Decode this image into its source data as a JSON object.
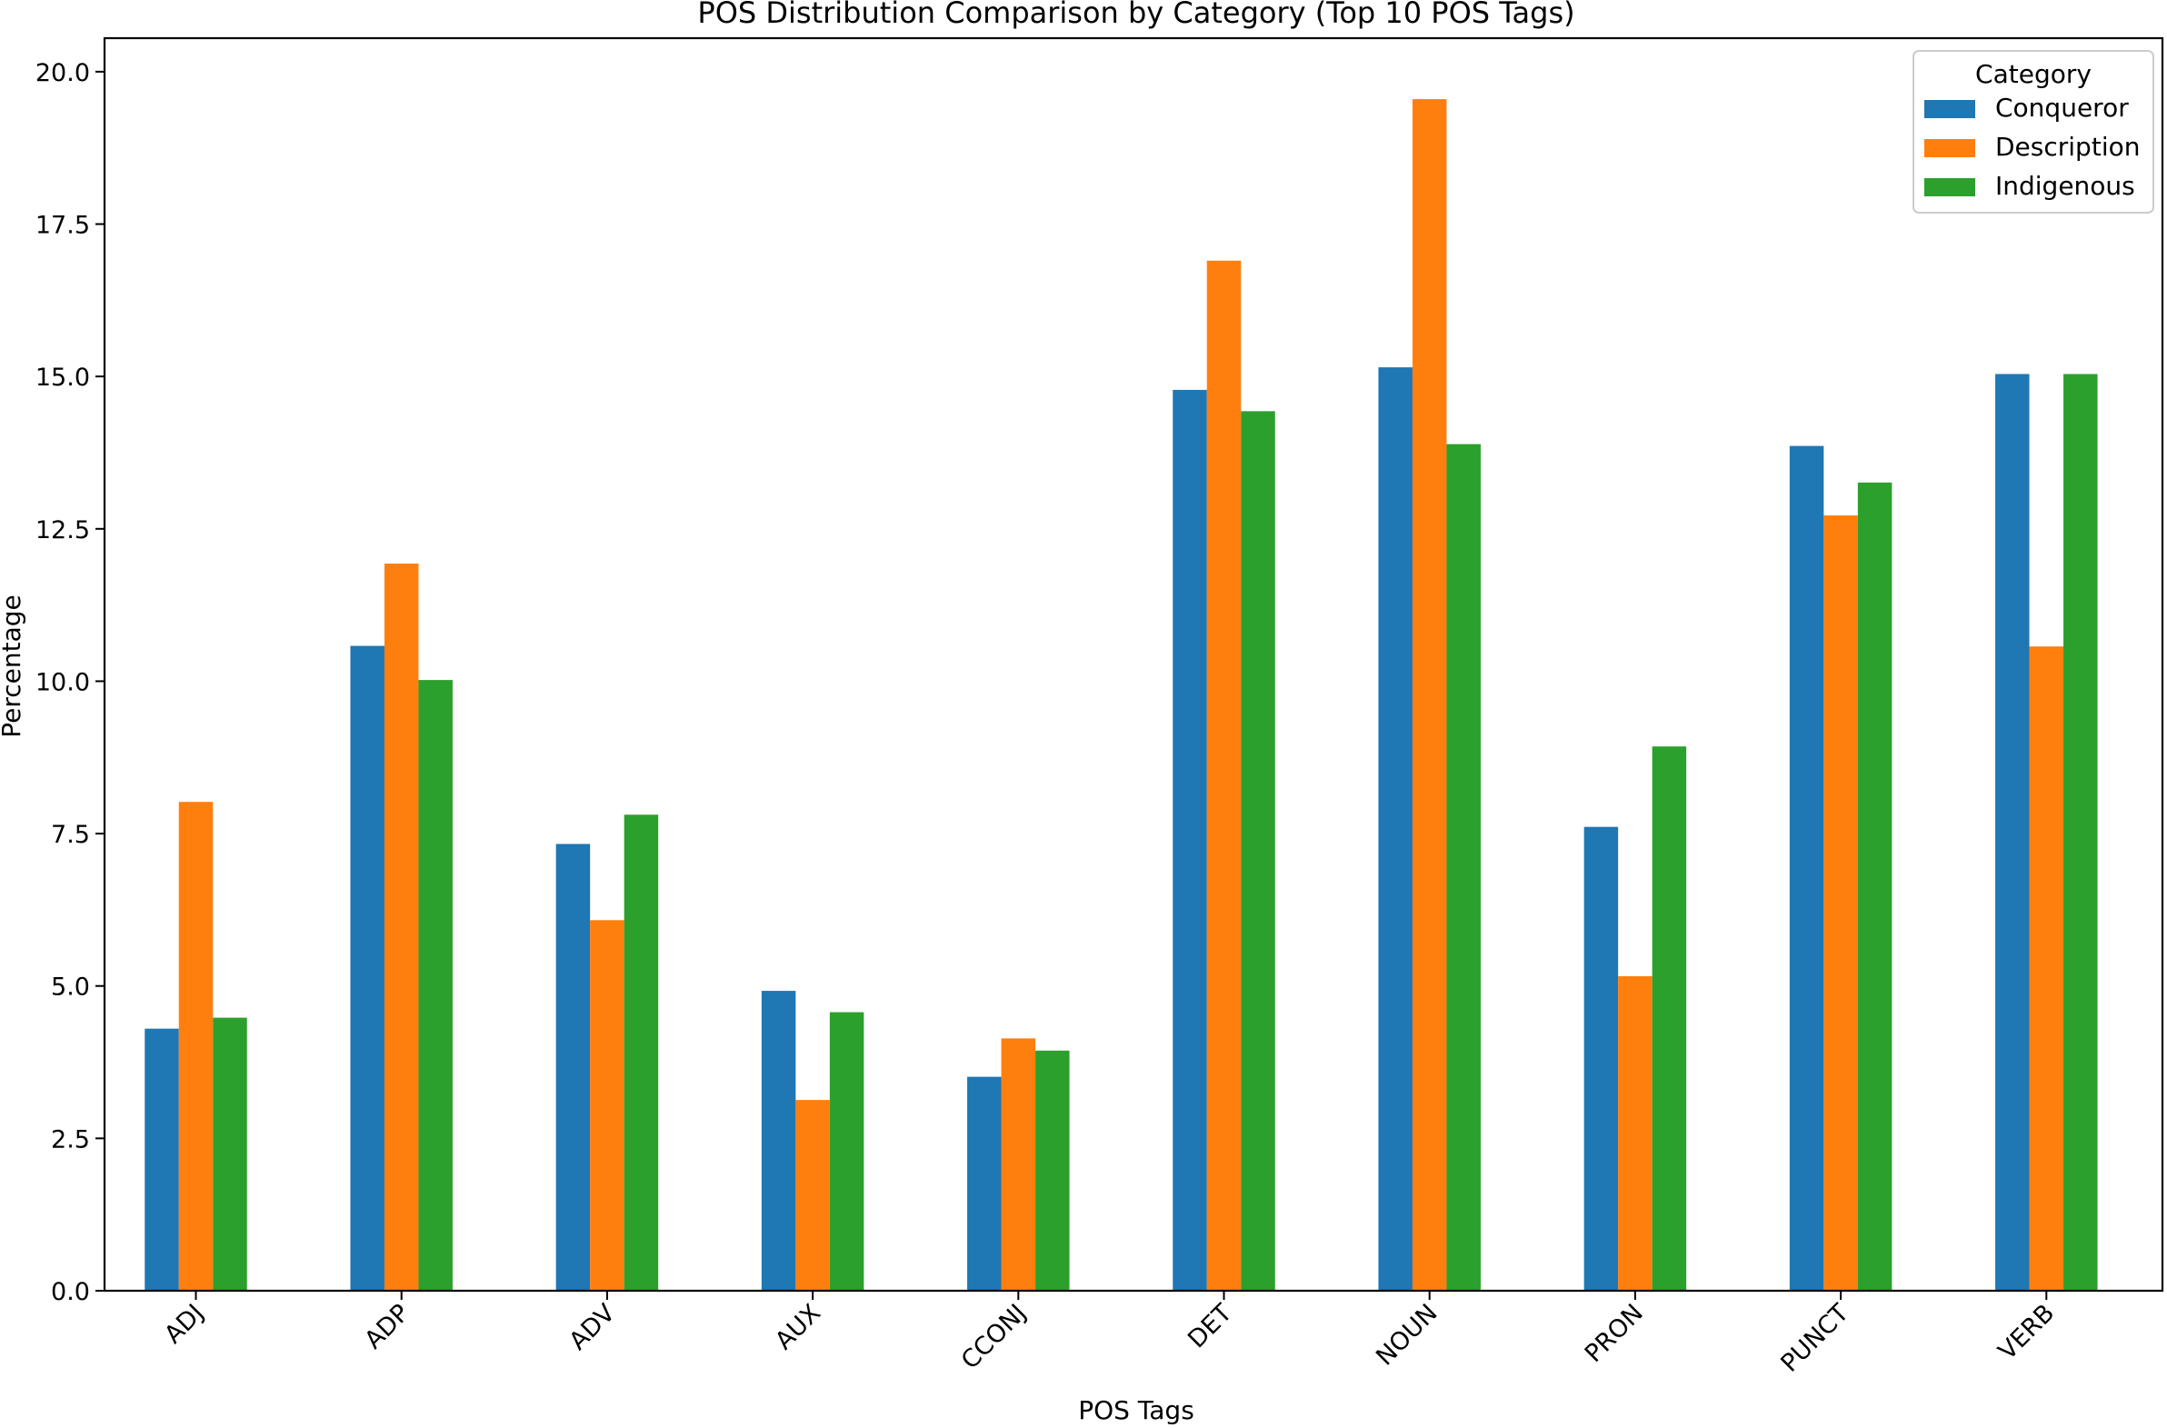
{
  "chart_data": {
    "type": "bar",
    "title": "POS Distribution Comparison by Category (Top 10 POS Tags)",
    "xlabel": "POS Tags",
    "ylabel": "Percentage",
    "categories": [
      "ADJ",
      "ADP",
      "ADV",
      "AUX",
      "CCONJ",
      "DET",
      "NOUN",
      "PRON",
      "PUNCT",
      "VERB"
    ],
    "series": [
      {
        "name": "Conqueror",
        "color": "#1f77b4",
        "values": [
          4.3,
          10.58,
          7.33,
          4.92,
          3.51,
          14.78,
          15.15,
          7.61,
          13.86,
          15.04
        ]
      },
      {
        "name": "Description",
        "color": "#ff7f0e",
        "values": [
          8.02,
          11.93,
          6.08,
          3.13,
          4.14,
          16.9,
          19.55,
          5.16,
          12.72,
          10.57
        ]
      },
      {
        "name": "Indigenous",
        "color": "#2ca02c",
        "values": [
          4.48,
          10.02,
          7.81,
          4.57,
          3.94,
          14.43,
          13.89,
          8.93,
          13.26,
          15.04
        ]
      }
    ],
    "ylim": [
      0,
      20.55
    ],
    "yticks": [
      0.0,
      2.5,
      5.0,
      7.5,
      10.0,
      12.5,
      15.0,
      17.5,
      20.0
    ],
    "ytick_labels": [
      "0.0",
      "2.5",
      "5.0",
      "7.5",
      "10.0",
      "12.5",
      "15.0",
      "17.5",
      "20.0"
    ],
    "legend": {
      "title": "Category",
      "position": "top-right"
    },
    "grid": false
  }
}
